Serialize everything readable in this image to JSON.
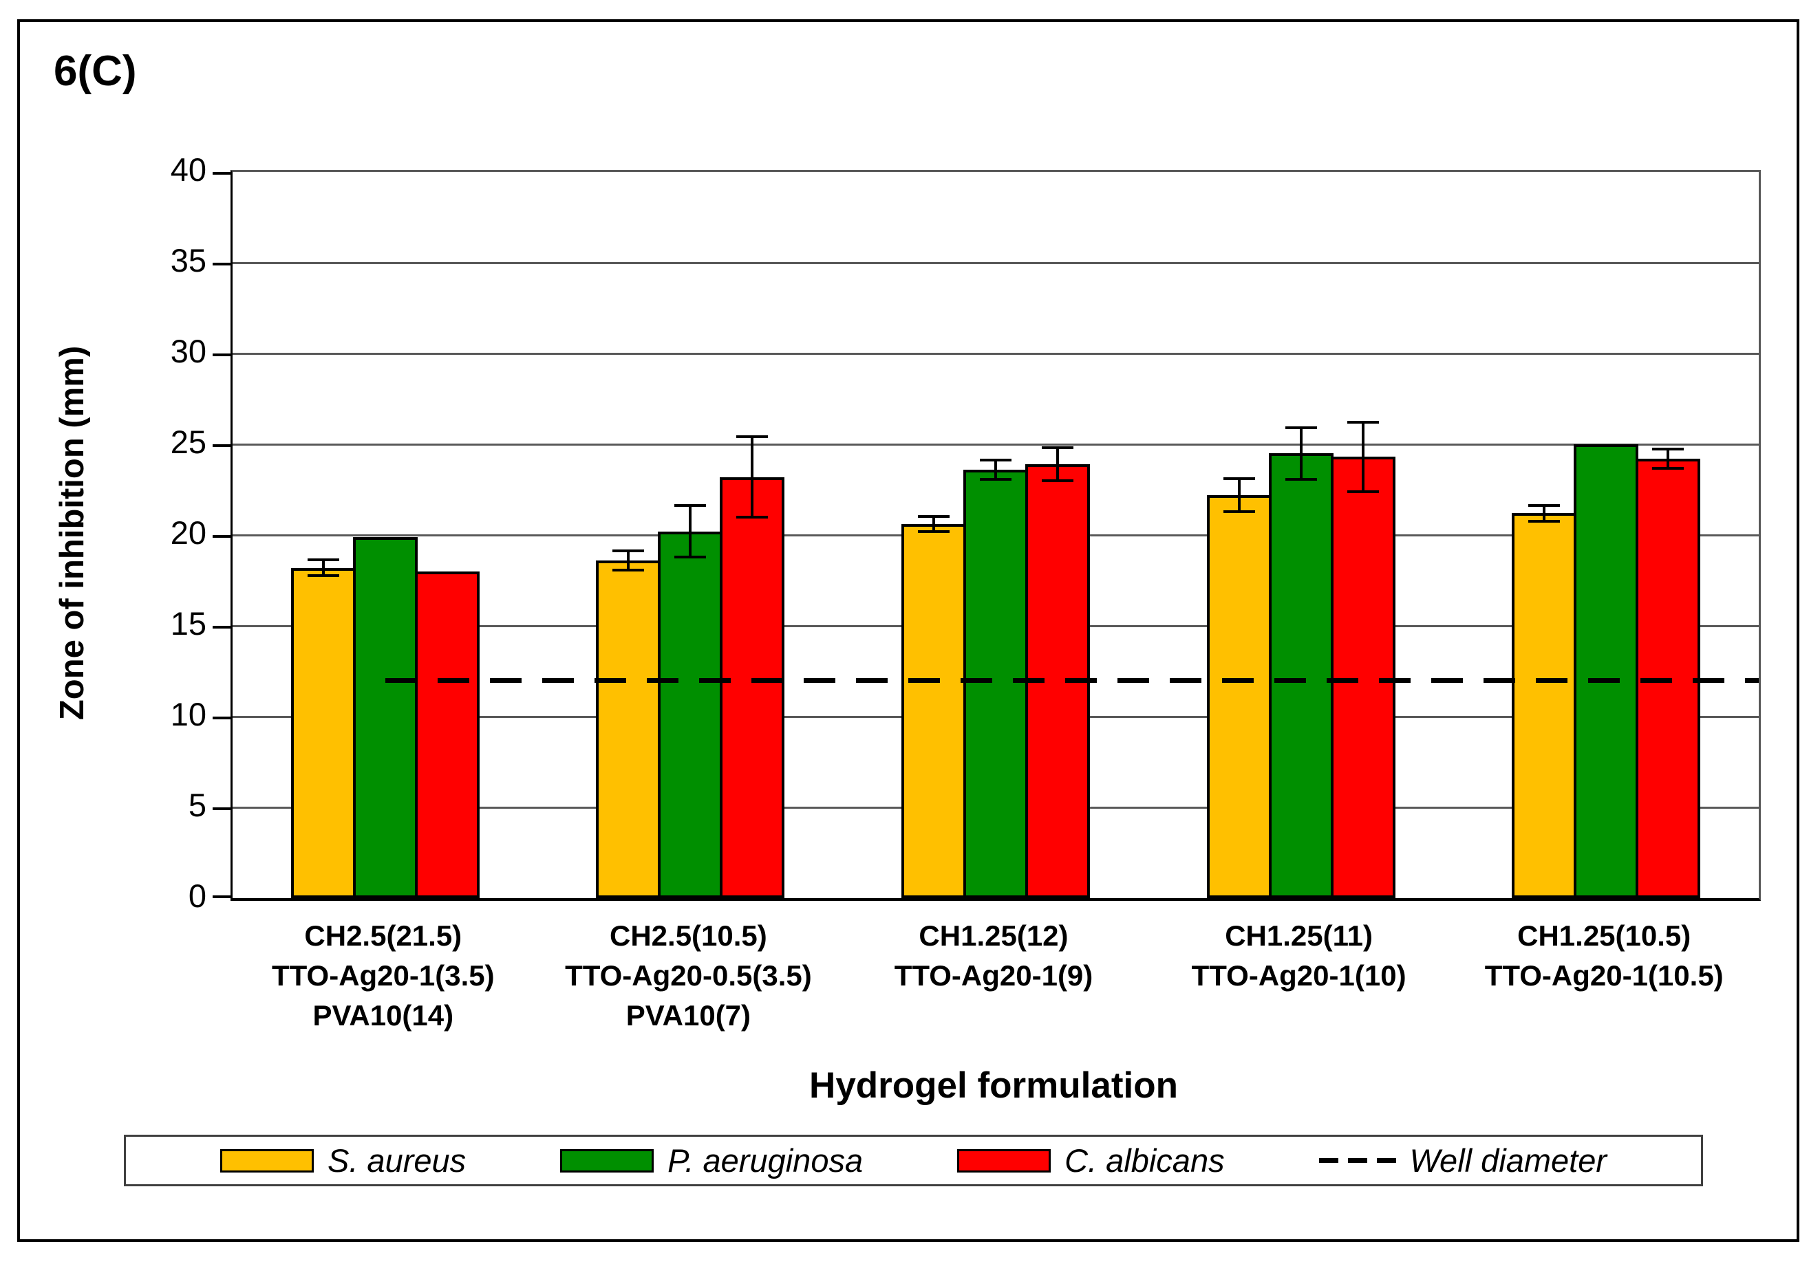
{
  "figure_label": "6(C)",
  "chart_data": {
    "type": "bar",
    "title": "6(C)",
    "xlabel": "Hydrogel formulation",
    "ylabel": "Zone of inhibition (mm)",
    "ylim": [
      0,
      40
    ],
    "ytick_interval": 5,
    "grid": true,
    "legend_position": "bottom",
    "categories": [
      "CH2.5(21.5)\nTTO-Ag20-1(3.5)\nPVA10(14)",
      "CH2.5(10.5)\nTTO-Ag20-0.5(3.5)\nPVA10(7)",
      "CH1.25(12)\nTTO-Ag20-1(9)",
      "CH1.25(11)\nTTO-Ag20-1(10)",
      "CH1.25(10.5)\nTTO-Ag20-1(10.5)"
    ],
    "series": [
      {
        "name": "S. aureus",
        "color": "#FFC000",
        "values": [
          18.2,
          18.6,
          20.6,
          22.2,
          21.2
        ],
        "errors": [
          0.5,
          0.6,
          0.5,
          1.0,
          0.5
        ]
      },
      {
        "name": "P. aeruginosa",
        "color": "#008F00",
        "values": [
          19.9,
          20.2,
          23.6,
          24.5,
          25.0
        ],
        "errors": [
          null,
          1.5,
          0.6,
          1.5,
          null
        ]
      },
      {
        "name": "C. albicans",
        "color": "#FF0000",
        "values": [
          18.0,
          23.2,
          23.9,
          24.3,
          24.2
        ],
        "errors": [
          null,
          2.3,
          1.0,
          2.0,
          0.6
        ]
      }
    ],
    "reference_line": {
      "label": "Well diameter",
      "value": 12,
      "style": "dashed",
      "color": "#000000"
    }
  }
}
